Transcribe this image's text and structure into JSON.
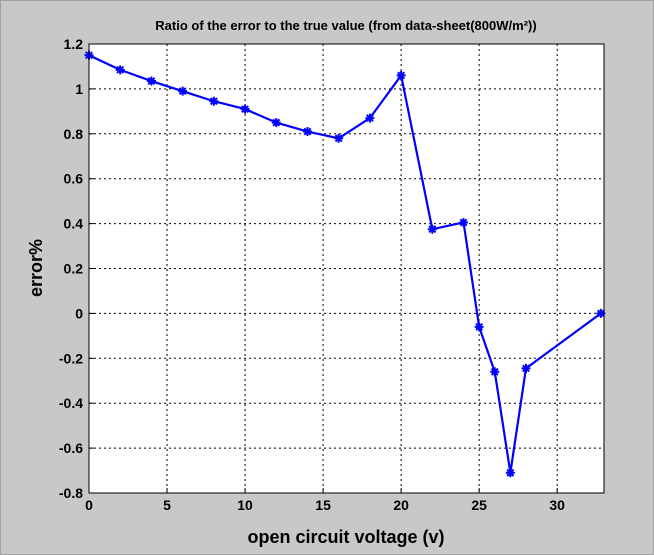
{
  "chart_data": {
    "type": "line",
    "title": "Ratio of the error to the true value (from data-sheet(800W/m²))",
    "xlabel": "open circuit voltage (v)",
    "ylabel": "error%",
    "x": [
      0,
      2,
      4,
      6,
      8,
      10,
      12,
      14,
      16,
      18,
      20,
      22,
      24,
      25,
      26,
      27,
      28,
      32.8
    ],
    "series": [
      {
        "name": "error",
        "color": "#0000ff",
        "values": [
          1.15,
          1.085,
          1.035,
          0.99,
          0.945,
          0.91,
          0.85,
          0.81,
          0.78,
          0.87,
          1.06,
          0.375,
          0.405,
          -0.06,
          -0.26,
          -0.71,
          -0.245,
          0
        ]
      }
    ],
    "xlim": [
      0,
      33
    ],
    "ylim": [
      -0.8,
      1.2
    ],
    "xticks": [
      0,
      5,
      10,
      15,
      20,
      25,
      30
    ],
    "yticks": [
      -0.8,
      -0.6,
      -0.4,
      -0.2,
      0,
      0.2,
      0.4,
      0.6,
      0.8,
      1,
      1.2
    ],
    "grid": true
  }
}
